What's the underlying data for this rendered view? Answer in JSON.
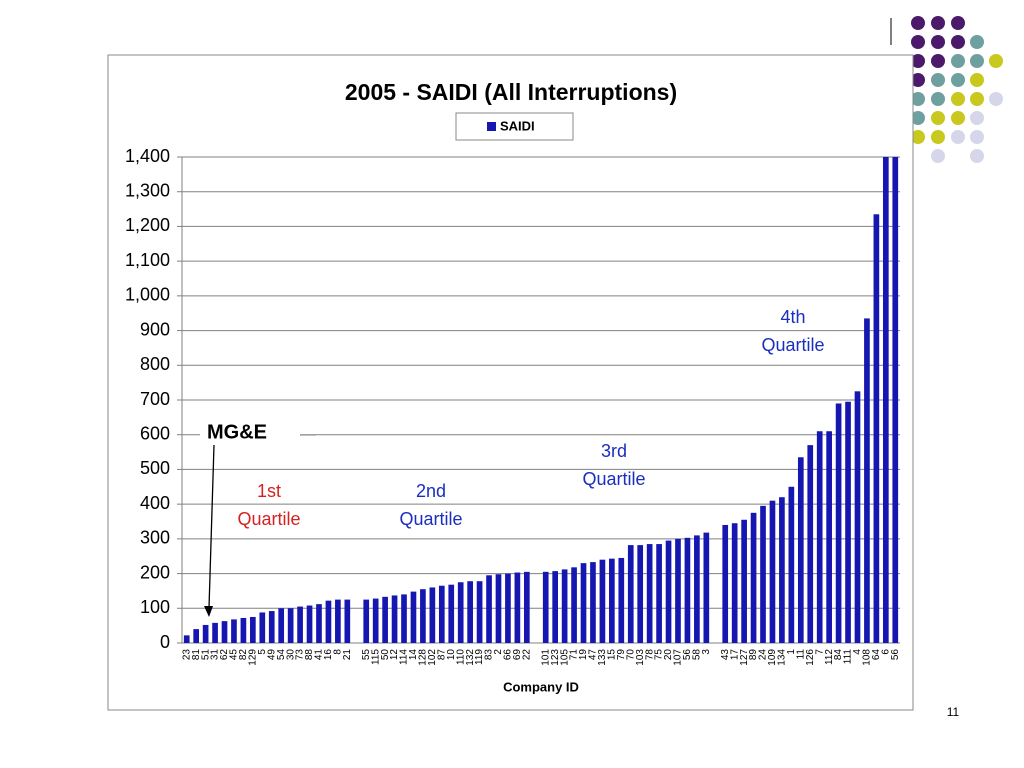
{
  "chart_data": {
    "type": "bar",
    "title": "2005 - SAIDI (All Interruptions)",
    "x_label": "Company ID",
    "legend": "top",
    "grid": true,
    "categories": [
      "23",
      "81",
      "51",
      "31",
      "62",
      "45",
      "82",
      "129",
      "5",
      "49",
      "54",
      "30",
      "73",
      "88",
      "41",
      "16",
      "8",
      "21",
      null,
      "55",
      "115",
      "50",
      "12",
      "114",
      "14",
      "128",
      "102",
      "87",
      "10",
      "110",
      "132",
      "119",
      "83",
      "2",
      "66",
      "69",
      "22",
      null,
      "101",
      "123",
      "105",
      "71",
      "19",
      "47",
      "133",
      "15",
      "79",
      "70",
      "103",
      "78",
      "75",
      "20",
      "107",
      "56",
      "58",
      "3",
      null,
      "43",
      "17",
      "127",
      "89",
      "24",
      "109",
      "134",
      "1",
      "11",
      "126",
      "7",
      "112",
      "84",
      "111",
      "4",
      "108",
      "64",
      "6",
      "56"
    ],
    "series": [
      {
        "name": "SAIDI",
        "color": "#1616b0",
        "values": [
          22,
          40,
          52,
          58,
          63,
          68,
          72,
          75,
          88,
          92,
          100,
          100,
          105,
          108,
          112,
          122,
          125,
          125,
          null,
          125,
          128,
          133,
          137,
          140,
          148,
          155,
          160,
          165,
          168,
          175,
          178,
          178,
          195,
          198,
          200,
          203,
          205,
          null,
          205,
          207,
          212,
          218,
          230,
          233,
          240,
          243,
          245,
          282,
          282,
          285,
          285,
          295,
          300,
          303,
          310,
          318,
          null,
          340,
          345,
          355,
          375,
          395,
          410,
          420,
          450,
          535,
          570,
          610,
          610,
          690,
          695,
          725,
          935,
          1235,
          1400,
          1400
        ]
      }
    ],
    "ylim": [
      0,
      1400
    ],
    "yticks": [
      0,
      100,
      200,
      300,
      400,
      500,
      600,
      700,
      800,
      900,
      {
        "value": 1000,
        "label": "1,000"
      },
      {
        "value": 1100,
        "label": "1,100"
      },
      {
        "value": 1200,
        "label": "1,200"
      },
      {
        "value": 1300,
        "label": "1,300"
      },
      {
        "value": 1400,
        "label": "1,400"
      }
    ],
    "annotations": [
      {
        "lines": [
          "MG&E"
        ],
        "color": "#000000"
      },
      {
        "lines": [
          "1st",
          "Quartile"
        ],
        "color": "#d42222"
      },
      {
        "lines": [
          "2nd",
          "Quartile"
        ],
        "color": "#1a2ec0"
      },
      {
        "lines": [
          "3rd",
          "Quartile"
        ],
        "color": "#1a2ec0"
      },
      {
        "lines": [
          "4th",
          "Quartile"
        ],
        "color": "#1a2ec0"
      }
    ]
  },
  "slide_number": "11"
}
